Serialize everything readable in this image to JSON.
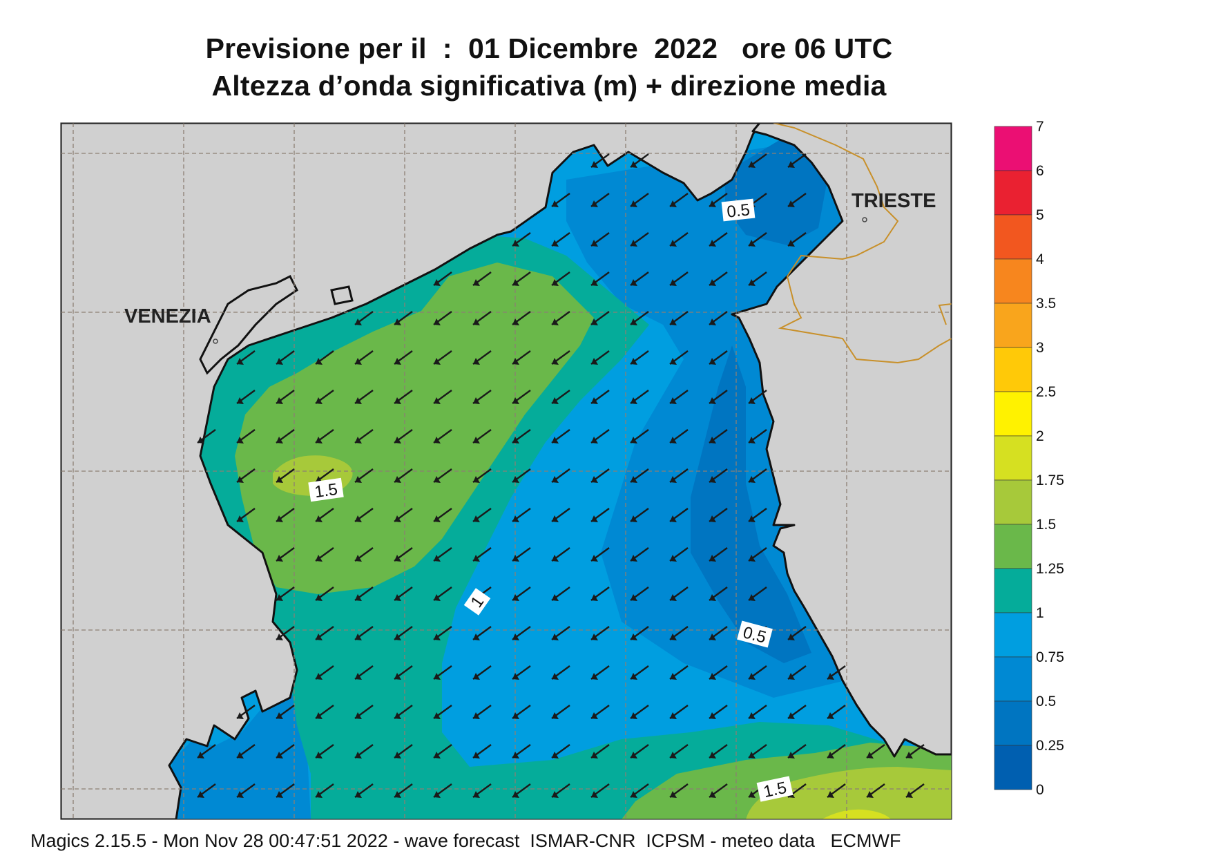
{
  "title": {
    "line1": "Previsione per il  :  01 Dicembre  2022   ore 06 UTC",
    "line2": "Altezza d’onda significativa (m) + direzione media"
  },
  "map": {
    "cities": {
      "venezia": "VENEZIA",
      "trieste": "TRIESTE"
    },
    "contour_labels": {
      "top": "0.5",
      "left": "1.5",
      "center": "1",
      "right": "0.5",
      "bottom": "1.5"
    },
    "land_color": "#d0d0d0",
    "coast_color": "#111111",
    "border_color": "#c8902a",
    "grid_color": "#8c7f73",
    "arrow_color": "#1a1a1a",
    "wave_direction": "south-west"
  },
  "legend": {
    "labels": [
      "7",
      "6",
      "5",
      "4",
      "3.5",
      "3",
      "2.5",
      "2",
      "1.75",
      "1.5",
      "1.25",
      "1",
      "0.75",
      "0.5",
      "0.25",
      "0"
    ],
    "colors": [
      "#eb0f73",
      "#ea2131",
      "#f2571f",
      "#f7861e",
      "#f9a51c",
      "#ffc908",
      "#fff200",
      "#d6e021",
      "#a7c93a",
      "#6ab84a",
      "#05ac9a",
      "#009ee0",
      "#0089d3",
      "#0075c1",
      "#005fb0"
    ]
  },
  "footer": "Magics 2.15.5 - Mon Nov 28 00:47:51 2022 - wave forecast  ISMAR-CNR  ICPSM - meteo data   ECMWF"
}
